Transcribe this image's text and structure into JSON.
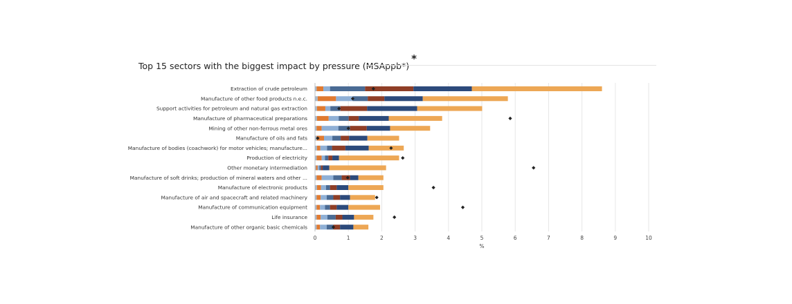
{
  "title": "Top 15 sectors with the biggest impact by pressure (MSAppb*)",
  "title_mark": "*",
  "colors": [
    "#a9b8c8",
    "#e07a30",
    "#8fb0d6",
    "#4a6b94",
    "#8f3e26",
    "#2c4a7b",
    "#eda755"
  ],
  "marker_color": "#222222",
  "chart_data": {
    "type": "bar",
    "orientation": "horizontal",
    "stacked": true,
    "title": "Top 15 sectors with the biggest impact by pressure (MSAppb*)",
    "xlabel": "%",
    "ylabel": "",
    "xlim": [
      0,
      10
    ],
    "xticks": [
      0,
      1,
      2,
      3,
      4,
      5,
      6,
      7,
      8,
      9,
      10
    ],
    "grid": "vertical",
    "legend": "none",
    "categories": [
      "Extraction of crude petroleum",
      "Manufacture of other food products n.e.c.",
      "Support activities for petroleum and natural gas extraction",
      "Manufacture of pharmaceutical preparations",
      "Mining of other non-ferrous metal ores",
      "Manufacture of oils and fats",
      "Manufacture of bodies (coachwork) for motor vehicles; manufacture...",
      "Production of electricity",
      "Other monetary intermediation",
      "Manufacture of soft drinks; production of mineral waters and other ...",
      "Manufacture of electronic products",
      "Manufacture of air and spacecraft and related machinery",
      "Manufacture of communication equipment",
      "Life insurance",
      "Manufacture of other organic basic chemicals"
    ],
    "series": [
      {
        "values": [
          0.05,
          0.08,
          0.06,
          0.06,
          0.05,
          0.05,
          0.06,
          0.05,
          0.03,
          0.05,
          0.06,
          0.05,
          0.05,
          0.05,
          0.05
        ]
      },
      {
        "values": [
          0.2,
          0.55,
          0.25,
          0.35,
          0.15,
          0.22,
          0.1,
          0.15,
          0.05,
          0.15,
          0.12,
          0.12,
          0.1,
          0.12,
          0.1
        ]
      },
      {
        "values": [
          0.2,
          0.5,
          0.15,
          0.3,
          0.5,
          0.25,
          0.2,
          0.1,
          0.05,
          0.35,
          0.15,
          0.18,
          0.15,
          0.2,
          0.2
        ]
      },
      {
        "values": [
          1.05,
          0.45,
          0.3,
          0.3,
          0.35,
          0.25,
          0.15,
          0.1,
          0.05,
          0.25,
          0.12,
          0.2,
          0.15,
          0.25,
          0.2
        ]
      },
      {
        "values": [
          1.45,
          0.5,
          0.8,
          0.3,
          0.5,
          0.25,
          0.4,
          0.12,
          0.05,
          0.25,
          0.2,
          0.2,
          0.2,
          0.2,
          0.2
        ]
      },
      {
        "values": [
          1.75,
          1.15,
          1.5,
          0.9,
          0.7,
          0.55,
          0.7,
          0.2,
          0.2,
          0.25,
          0.35,
          0.3,
          0.35,
          0.35,
          0.4
        ]
      },
      {
        "values": [
          3.9,
          2.55,
          1.95,
          1.6,
          1.2,
          0.95,
          1.05,
          1.8,
          1.7,
          0.75,
          1.05,
          0.75,
          0.95,
          0.58,
          0.45
        ]
      }
    ],
    "totals": [
      8.6,
      5.78,
      5.01,
      3.81,
      3.45,
      2.52,
      2.66,
      2.52,
      2.13,
      2.05,
      2.05,
      1.8,
      1.95,
      1.75,
      1.6
    ],
    "markers": [
      1.75,
      1.13,
      0.72,
      5.85,
      1.0,
      0.08,
      2.28,
      2.63,
      6.55,
      0.98,
      3.55,
      1.85,
      4.43,
      2.38,
      0.55
    ]
  }
}
